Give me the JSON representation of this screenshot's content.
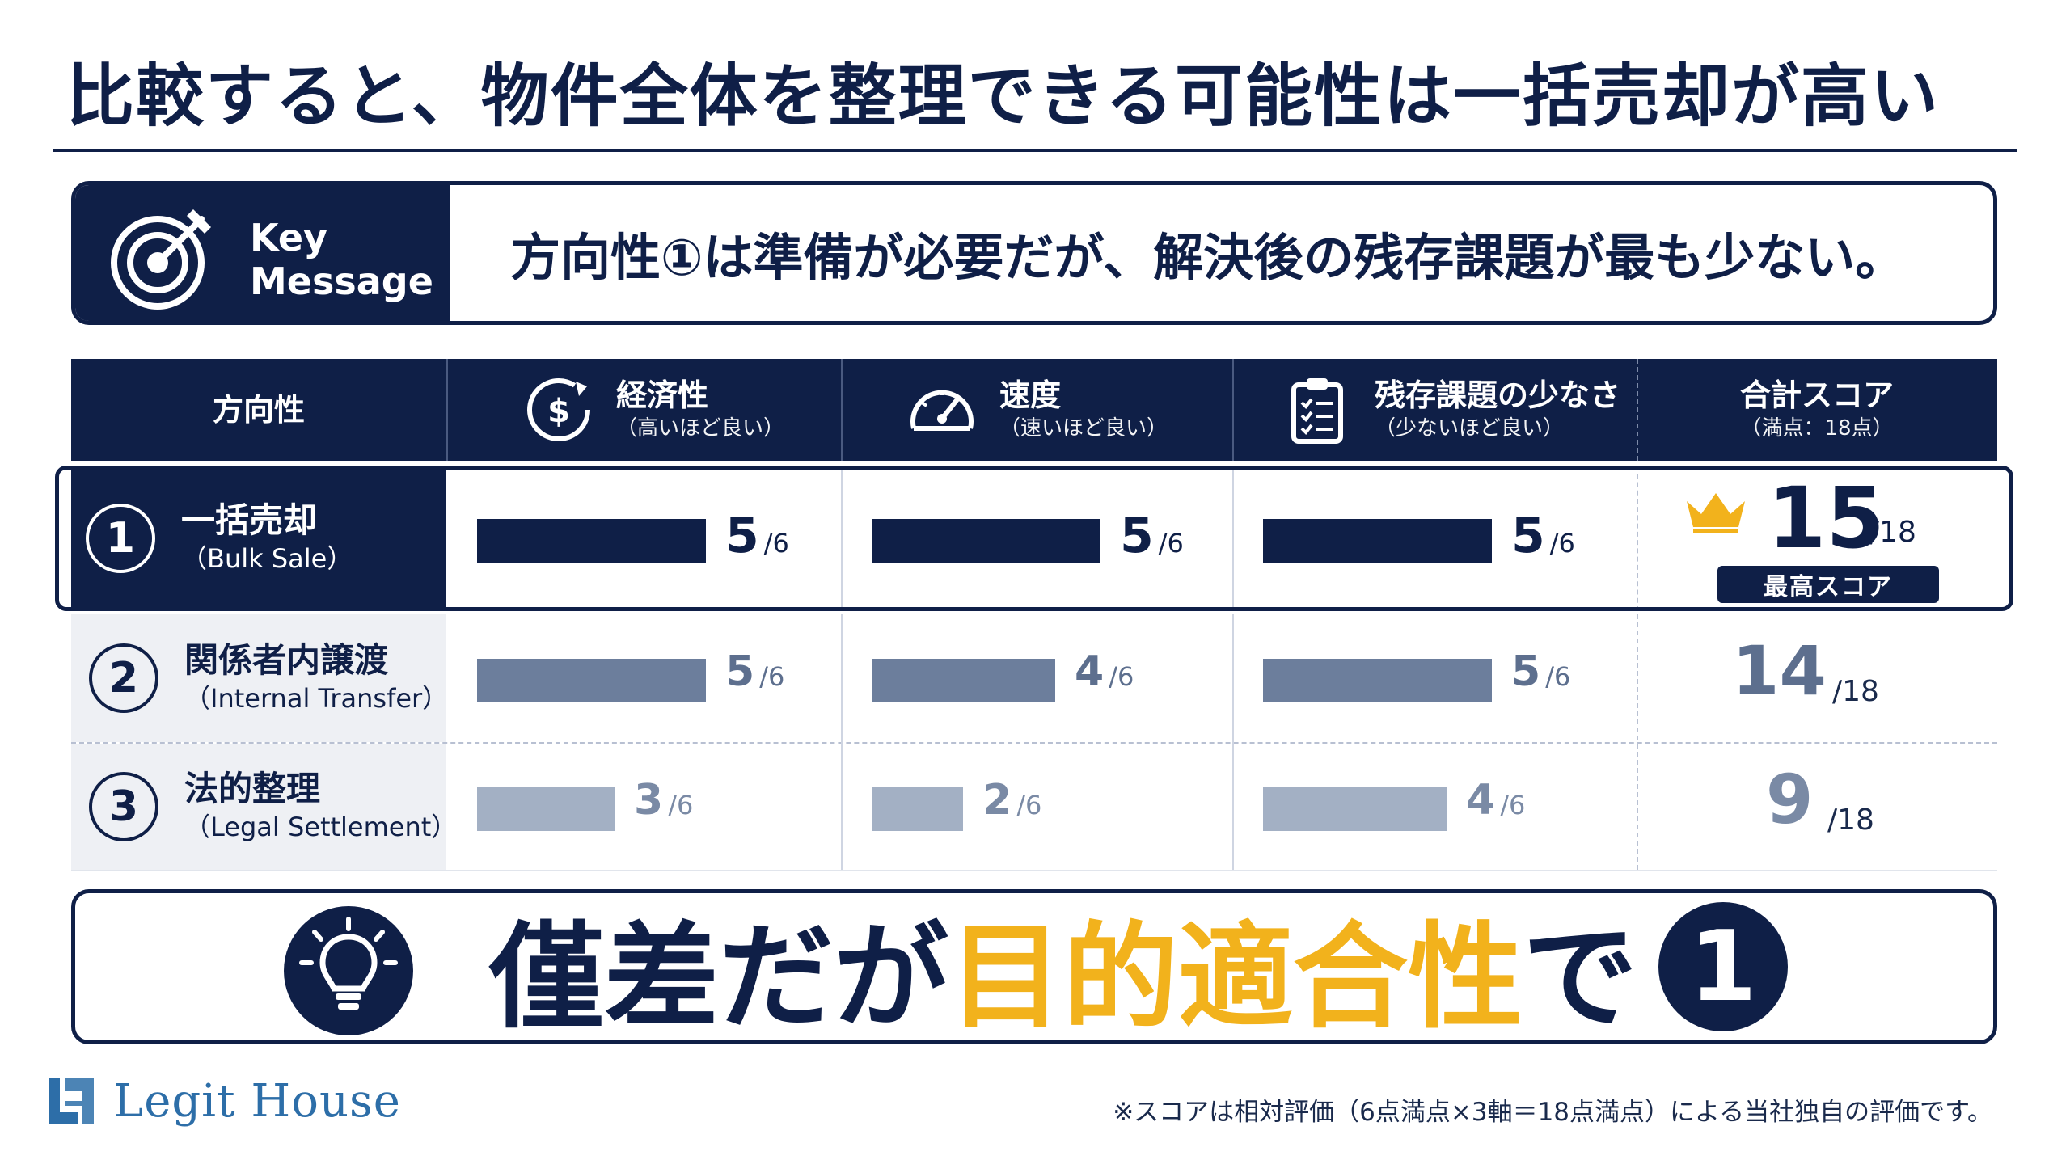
{
  "title": "比較すると、物件全体を整理できる可能性は一括売却が高い",
  "key_message": {
    "label_line1": "Key",
    "label_line2": "Message",
    "icon": "target-icon",
    "text": "方向性①は準備が必要だが、解決後の残存課題が最も少ない。"
  },
  "table": {
    "headers": {
      "direction": "方向性",
      "economy": {
        "main": "経済性",
        "sub": "（高いほど良い）",
        "icon": "money-cycle-icon"
      },
      "speed": {
        "main": "速度",
        "sub": "（速いほど良い）",
        "icon": "speedometer-icon"
      },
      "remaining": {
        "main": "残存課題の少なさ",
        "sub": "（少ないほど良い）",
        "icon": "clipboard-checklist-icon"
      },
      "total": {
        "main": "合計スコア",
        "sub": "（満点：18点）"
      }
    },
    "max_per_axis": 6,
    "total_max": 18,
    "denominator_label": "/6",
    "total_denominator_label": "/18",
    "rows": [
      {
        "num": "1",
        "name_jp": "一括売却",
        "name_en": "（Bulk Sale）",
        "economy": 5,
        "speed": 5,
        "remaining": 5,
        "total": 15,
        "economy_label": "5",
        "speed_label": "5",
        "remaining_label": "5",
        "total_label": "15",
        "badge": "最高スコア",
        "bar_color": "#0f1f47",
        "text_color": "#0f1f47"
      },
      {
        "num": "2",
        "name_jp": "関係者内譲渡",
        "name_en": "（Internal Transfer）",
        "economy": 5,
        "speed": 4,
        "remaining": 5,
        "total": 14,
        "economy_label": "5",
        "speed_label": "4",
        "remaining_label": "5",
        "total_label": "14",
        "bar_color": "#6c7e9c",
        "text_color": "#5d6f8e"
      },
      {
        "num": "3",
        "name_jp": "法的整理",
        "name_en": "（Legal Settlement）",
        "economy": 3,
        "speed": 2,
        "remaining": 4,
        "total": 9,
        "economy_label": "3",
        "speed_label": "2",
        "remaining_label": "4",
        "total_label": "9",
        "bar_color": "#a3b0c4",
        "text_color": "#7a8aa5"
      }
    ]
  },
  "conclusion": {
    "part1": "僅差だが",
    "part2": "目的適合性",
    "part3": "で",
    "circle": "1",
    "icon": "lightbulb-icon"
  },
  "footer": {
    "logo_text": "Legit House",
    "note": "※スコアは相対評価（6点満点×3軸＝18点満点）による当社独自の評価です。"
  },
  "colors": {
    "navy": "#0f1f47",
    "gold": "#f2b21c",
    "logo_blue": "#2d6ea8"
  }
}
